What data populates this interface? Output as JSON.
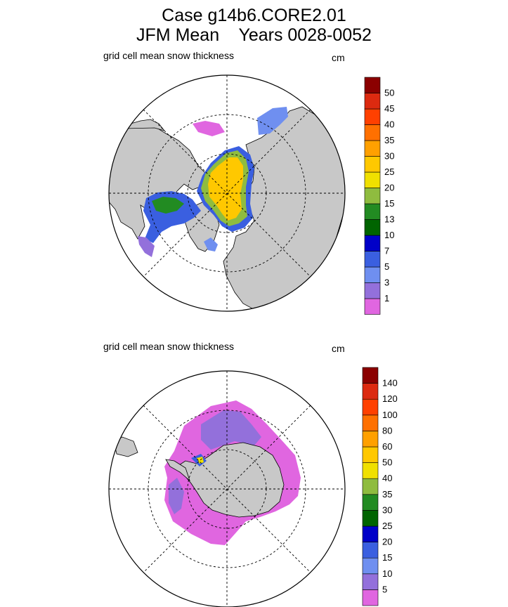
{
  "title_line1": "Case g14b6.CORE2.01",
  "title_line2": "JFM Mean    Years 0028-0052",
  "chart_data": [
    {
      "type": "heatmap",
      "projection": "polar stereographic (north)",
      "title": "grid cell mean snow thickness",
      "units": "cm",
      "colorbar": {
        "levels": [
          "1",
          "3",
          "5",
          "7",
          "10",
          "13",
          "15",
          "20",
          "25",
          "30",
          "35",
          "40",
          "45",
          "50"
        ],
        "colors": [
          "#e066e0",
          "#9370db",
          "#6f8ff0",
          "#3a5fe0",
          "#0000c8",
          "#006400",
          "#228b22",
          "#8fbc3f",
          "#f0e000",
          "#ffc800",
          "#ffa000",
          "#ff7000",
          "#ff4000",
          "#dc2a10",
          "#8b0000"
        ]
      }
    },
    {
      "type": "heatmap",
      "projection": "polar stereographic (south)",
      "title": "grid cell mean snow thickness",
      "units": "cm",
      "colorbar": {
        "levels": [
          "5",
          "10",
          "15",
          "20",
          "25",
          "30",
          "35",
          "40",
          "50",
          "60",
          "80",
          "100",
          "120",
          "140"
        ],
        "colors": [
          "#e066e0",
          "#9370db",
          "#6f8ff0",
          "#3a5fe0",
          "#0000c8",
          "#006400",
          "#228b22",
          "#8fbc3f",
          "#f0e000",
          "#ffc800",
          "#ffa000",
          "#ff7000",
          "#ff4000",
          "#dc2a10",
          "#8b0000"
        ]
      }
    }
  ]
}
